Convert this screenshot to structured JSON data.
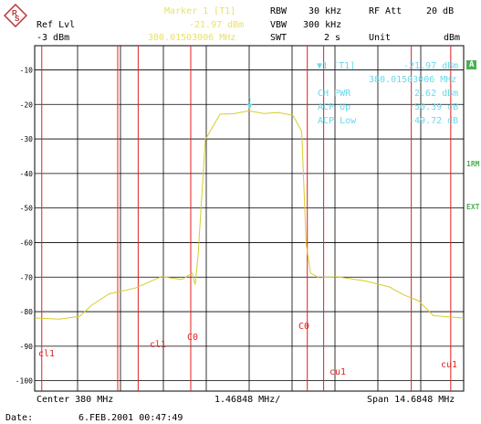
{
  "header": {
    "ref_lvl_label": "Ref Lvl",
    "ref_lvl_value": "-3 dBm",
    "marker_title": "Marker 1 [T1]",
    "marker_level": "-21.97 dBm",
    "marker_freq": "380.01503006 MHz",
    "rbw_label": "RBW",
    "rbw_value": "30 kHz",
    "vbw_label": "VBW",
    "vbw_value": "300 kHz",
    "swt_label": "SWT",
    "swt_value": "2 s",
    "rf_att_label": "RF Att",
    "rf_att_value": "20 dB",
    "unit_label": "Unit",
    "unit_value": "dBm"
  },
  "side": {
    "a_badge": "A",
    "rbw_marker": "1RM",
    "ext_marker": "EXT"
  },
  "readout": {
    "marker_id": "▼1 [T1]",
    "marker_level": "-21.97 dBm",
    "marker_freq": "380.01503006 MHz",
    "ch_pwr_label": "CH PWR",
    "ch_pwr_value": "-2.62 dBm",
    "acp_up_label": "ACP Up",
    "acp_up_value": "-50.39 dB",
    "acp_low_label": "ACP Low",
    "acp_low_value": "-49.72 dB"
  },
  "footer": {
    "center": "Center 380 MHz",
    "span_per_div": "1.46848 MHz/",
    "span": "Span 14.6848 MHz",
    "date_label": "Date:",
    "date_value": "6.FEB.2001  00:47:49"
  },
  "channel_labels": {
    "cl1_left": "cl1",
    "cl1_right": "cl1",
    "c0_left": "C0",
    "c0_right": "C0",
    "cu1_left": "cu1",
    "cu1_right": "cu1"
  },
  "colors": {
    "trace": "#d8cc2e",
    "channel_line": "#e02020",
    "grid": "#000000",
    "readout": "#6ad8e8",
    "marker_header": "#e8e070"
  },
  "chart_data": {
    "type": "line",
    "title": "",
    "xlabel": "",
    "ylabel": "",
    "unit": "dBm",
    "center_mhz": 380,
    "span_mhz": 14.6848,
    "x_range_mhz": [
      372.6576,
      387.3424
    ],
    "ylim": [
      -103,
      -3
    ],
    "y_ticks": [
      -10,
      -20,
      -30,
      -40,
      -50,
      -60,
      -70,
      -80,
      -90,
      -100
    ],
    "grid": true,
    "series": [
      {
        "x": [
          372.66,
          373.5,
          374.2,
          374.6,
          375.2,
          376.1,
          377.0,
          377.7,
          378.05,
          378.15,
          378.25,
          378.5,
          379.0,
          379.5,
          380.0,
          380.5,
          381.0,
          381.5,
          381.8,
          381.95,
          382.1,
          382.4,
          383.0,
          384.0,
          384.8,
          385.3,
          385.8,
          386.3,
          387.34
        ],
        "values": [
          -82,
          -82,
          -81.5,
          -78,
          -75,
          -73,
          -70,
          -70.5,
          -69,
          -72,
          -64,
          -30,
          -23,
          -22.5,
          -22,
          -22.5,
          -22.5,
          -23,
          -28,
          -60,
          -69,
          -70,
          -70,
          -71,
          -73,
          -75,
          -77,
          -81,
          -82
        ]
      }
    ],
    "marker": {
      "x": 380.01503006,
      "y": -21.97,
      "label": "1"
    },
    "channel_lines_mhz": [
      372.9,
      375.5,
      376.2,
      378.0,
      381.99,
      382.55,
      385.55,
      386.9
    ]
  }
}
